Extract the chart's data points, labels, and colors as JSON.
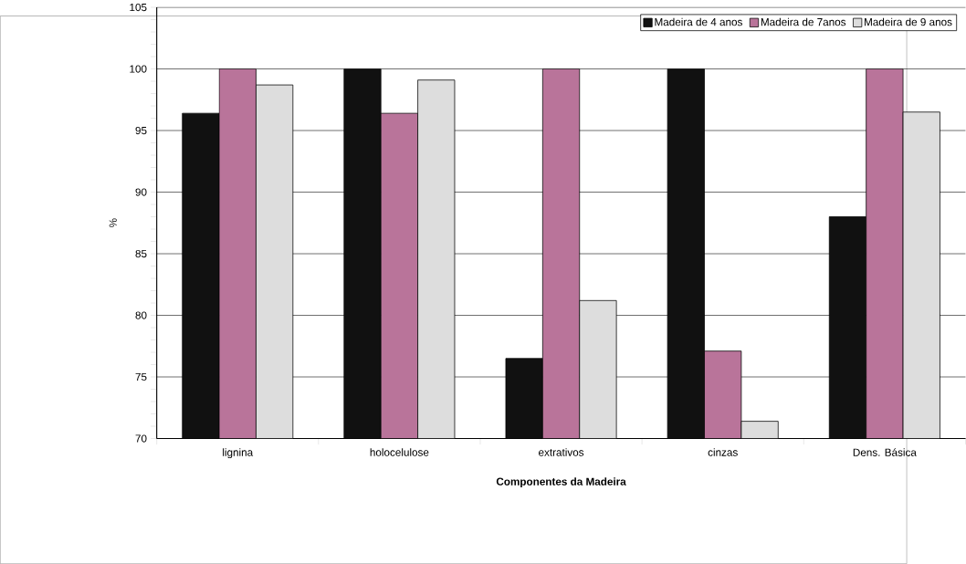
{
  "chart_data": {
    "type": "bar",
    "xlabel": "Componentes da Madeira",
    "ylabel": "%",
    "categories": [
      "lignina",
      "holocelulose",
      "extrativos",
      "cinzas",
      "Dens. Básica"
    ],
    "series": [
      {
        "name": "Madeira de 4 anos",
        "color": "#111111",
        "values": [
          96.4,
          100,
          76.5,
          100,
          88.0
        ]
      },
      {
        "name": "Madeira de 7anos",
        "color": "#b9749a",
        "values": [
          100,
          96.4,
          100,
          77.1,
          100
        ]
      },
      {
        "name": "Madeira de 9 anos",
        "color": "#dddddd",
        "values": [
          98.7,
          99.1,
          81.2,
          71.4,
          96.5
        ]
      }
    ],
    "ylim": [
      70,
      105
    ],
    "yticks": [
      70,
      75,
      80,
      85,
      90,
      95,
      100,
      105
    ],
    "grid": "y",
    "legend": "top right"
  }
}
